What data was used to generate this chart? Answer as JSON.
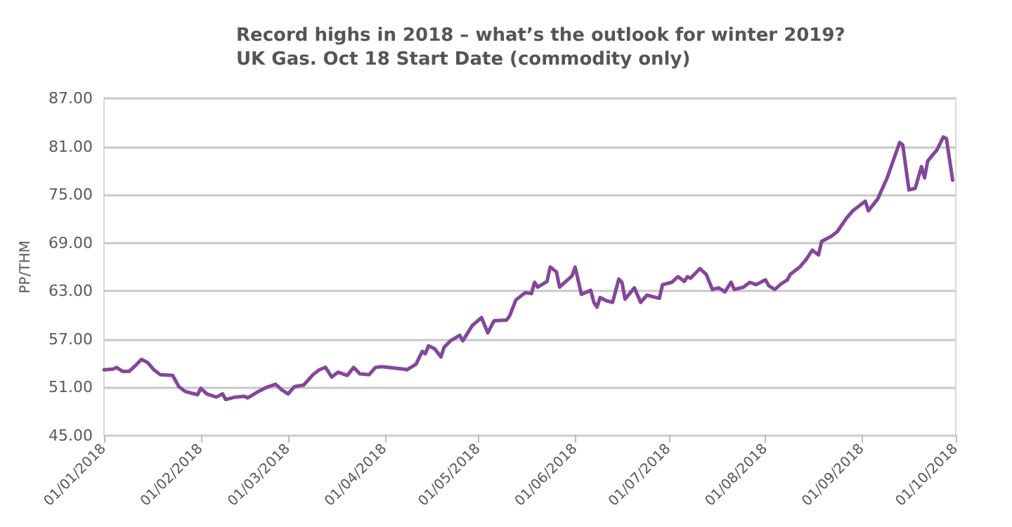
{
  "chart_data": {
    "type": "line",
    "title": "Record highs in 2018 – what’s the outlook for winter 2019?",
    "subtitle": "UK Gas. Oct 18 Start Date (commodity only)",
    "ylabel": "PP/THM",
    "x": [
      "2018-01-01",
      "2018-01-04",
      "2018-01-05",
      "2018-01-07",
      "2018-01-09",
      "2018-01-11",
      "2018-01-13",
      "2018-01-15",
      "2018-01-17",
      "2018-01-19",
      "2018-01-23",
      "2018-01-25",
      "2018-01-27",
      "2018-01-31",
      "2018-02-01",
      "2018-02-03",
      "2018-02-06",
      "2018-02-08",
      "2018-02-09",
      "2018-02-12",
      "2018-02-15",
      "2018-02-16",
      "2018-02-19",
      "2018-02-22",
      "2018-02-25",
      "2018-02-27",
      "2018-03-01",
      "2018-03-03",
      "2018-03-06",
      "2018-03-09",
      "2018-03-11",
      "2018-03-13",
      "2018-03-15",
      "2018-03-17",
      "2018-03-20",
      "2018-03-22",
      "2018-03-24",
      "2018-03-27",
      "2018-03-29",
      "2018-03-31",
      "2018-04-07",
      "2018-04-08",
      "2018-04-11",
      "2018-04-13",
      "2018-04-14",
      "2018-04-15",
      "2018-04-17",
      "2018-04-19",
      "2018-04-20",
      "2018-04-22",
      "2018-04-25",
      "2018-04-26",
      "2018-04-29",
      "2018-05-02",
      "2018-05-04",
      "2018-05-06",
      "2018-05-10",
      "2018-05-11",
      "2018-05-13",
      "2018-05-16",
      "2018-05-18",
      "2018-05-19",
      "2018-05-20",
      "2018-05-23",
      "2018-05-24",
      "2018-05-26",
      "2018-05-27",
      "2018-05-31",
      "2018-06-01",
      "2018-06-03",
      "2018-06-06",
      "2018-06-07",
      "2018-06-08",
      "2018-06-09",
      "2018-06-11",
      "2018-06-13",
      "2018-06-15",
      "2018-06-16",
      "2018-06-17",
      "2018-06-20",
      "2018-06-22",
      "2018-06-24",
      "2018-06-28",
      "2018-06-29",
      "2018-07-02",
      "2018-07-04",
      "2018-07-06",
      "2018-07-07",
      "2018-07-08",
      "2018-07-11",
      "2018-07-13",
      "2018-07-15",
      "2018-07-17",
      "2018-07-19",
      "2018-07-21",
      "2018-07-22",
      "2018-07-25",
      "2018-07-27",
      "2018-07-29",
      "2018-08-01",
      "2018-08-02",
      "2018-08-04",
      "2018-08-06",
      "2018-08-08",
      "2018-08-09",
      "2018-08-12",
      "2018-08-14",
      "2018-08-16",
      "2018-08-18",
      "2018-08-19",
      "2018-08-22",
      "2018-08-24",
      "2018-08-27",
      "2018-08-29",
      "2018-08-31",
      "2018-09-02",
      "2018-09-03",
      "2018-09-06",
      "2018-09-09",
      "2018-09-13",
      "2018-09-14",
      "2018-09-16",
      "2018-09-18",
      "2018-09-20",
      "2018-09-21",
      "2018-09-22",
      "2018-09-25",
      "2018-09-27",
      "2018-09-28",
      "2018-09-30"
    ],
    "series": [
      {
        "color": "#84469a",
        "values": [
          53.2,
          53.3,
          53.5,
          53.0,
          53.0,
          53.7,
          54.5,
          54.1,
          53.2,
          52.6,
          52.5,
          51.1,
          50.5,
          50.1,
          50.9,
          50.2,
          49.8,
          50.2,
          49.5,
          49.8,
          49.9,
          49.7,
          50.4,
          51.0,
          51.4,
          50.7,
          50.2,
          51.1,
          51.3,
          52.6,
          53.2,
          53.5,
          52.3,
          52.9,
          52.5,
          53.5,
          52.7,
          52.6,
          53.5,
          53.6,
          53.3,
          53.2,
          53.9,
          55.5,
          55.2,
          56.2,
          55.8,
          54.8,
          56.0,
          56.8,
          57.5,
          56.8,
          58.7,
          59.7,
          57.8,
          59.3,
          59.4,
          59.9,
          61.9,
          62.8,
          62.7,
          64.1,
          63.5,
          64.2,
          66.0,
          65.4,
          63.5,
          64.9,
          66.0,
          62.6,
          63.1,
          61.6,
          61.0,
          62.2,
          61.8,
          61.6,
          64.5,
          64.1,
          62.0,
          63.4,
          61.6,
          62.5,
          62.1,
          63.8,
          64.1,
          64.8,
          64.2,
          64.8,
          64.6,
          65.8,
          65.1,
          63.2,
          63.4,
          62.9,
          64.1,
          63.2,
          63.5,
          64.1,
          63.8,
          64.4,
          63.7,
          63.2,
          63.9,
          64.4,
          65.1,
          66.0,
          66.9,
          68.1,
          67.5,
          69.2,
          69.8,
          70.4,
          72.1,
          73.0,
          73.6,
          74.2,
          73.0,
          74.5,
          77.1,
          81.5,
          81.2,
          75.6,
          75.8,
          78.5,
          77.1,
          79.2,
          80.6,
          82.2,
          82.0,
          76.8
        ]
      }
    ],
    "xlim": [
      "2018-01-01",
      "2018-10-01"
    ],
    "xticks": [
      {
        "value": "2018-01-01",
        "label": "01/01/2018"
      },
      {
        "value": "2018-02-01",
        "label": "01/02/2018"
      },
      {
        "value": "2018-03-01",
        "label": "01/03/2018"
      },
      {
        "value": "2018-04-01",
        "label": "01/04/2018"
      },
      {
        "value": "2018-05-01",
        "label": "01/05/2018"
      },
      {
        "value": "2018-06-01",
        "label": "01/06/2018"
      },
      {
        "value": "2018-07-01",
        "label": "01/07/2018"
      },
      {
        "value": "2018-08-01",
        "label": "01/08/2018"
      },
      {
        "value": "2018-09-01",
        "label": "01/09/2018"
      },
      {
        "value": "2018-10-01",
        "label": "01/10/2018"
      }
    ],
    "ylim": [
      45,
      87
    ],
    "yticks": [
      {
        "value": 45,
        "label": "45.00"
      },
      {
        "value": 51,
        "label": "51.00"
      },
      {
        "value": 57,
        "label": "57.00"
      },
      {
        "value": 63,
        "label": "63.00"
      },
      {
        "value": 69,
        "label": "69.00"
      },
      {
        "value": 75,
        "label": "75.00"
      },
      {
        "value": 81,
        "label": "81.00"
      },
      {
        "value": 87,
        "label": "87.00"
      }
    ],
    "grid": "y",
    "marker": "none",
    "line_style": "solid"
  }
}
